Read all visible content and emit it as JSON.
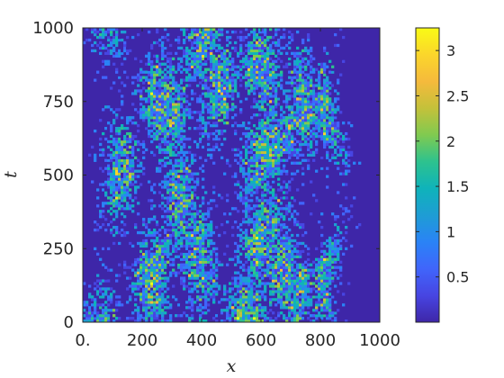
{
  "chart_data": {
    "type": "heatmap",
    "title": "",
    "xlabel": "x",
    "ylabel": "t",
    "xlim": [
      0,
      1000
    ],
    "ylim": [
      0,
      1000
    ],
    "x_ticks": [
      {
        "value": 0,
        "label": "0."
      },
      {
        "value": 200,
        "label": "200"
      },
      {
        "value": 400,
        "label": "400"
      },
      {
        "value": 600,
        "label": "600"
      },
      {
        "value": 800,
        "label": "800"
      },
      {
        "value": 1000,
        "label": "1000"
      }
    ],
    "y_ticks": [
      {
        "value": 0,
        "label": "0"
      },
      {
        "value": 250,
        "label": "250"
      },
      {
        "value": 500,
        "label": "500"
      },
      {
        "value": 750,
        "label": "750"
      },
      {
        "value": 1000,
        "label": "1000"
      }
    ],
    "colorbar": {
      "range": [
        0,
        3.25
      ],
      "ticks": [
        {
          "value": 0.5,
          "label": "0.5"
        },
        {
          "value": 1,
          "label": "1"
        },
        {
          "value": 1.5,
          "label": "1.5"
        },
        {
          "value": 2,
          "label": "2"
        },
        {
          "value": 2.5,
          "label": "2.5"
        },
        {
          "value": 3,
          "label": "3"
        }
      ],
      "colormap": [
        "#3e26a8",
        "#4745e2",
        "#4065fb",
        "#2a83f6",
        "#1e9dd4",
        "#0fb3ba",
        "#2dc28e",
        "#80ca50",
        "#c4c13a",
        "#f5ba3c",
        "#fbd62b",
        "#f9fb15"
      ]
    },
    "grid": false,
    "legend": "none"
  }
}
